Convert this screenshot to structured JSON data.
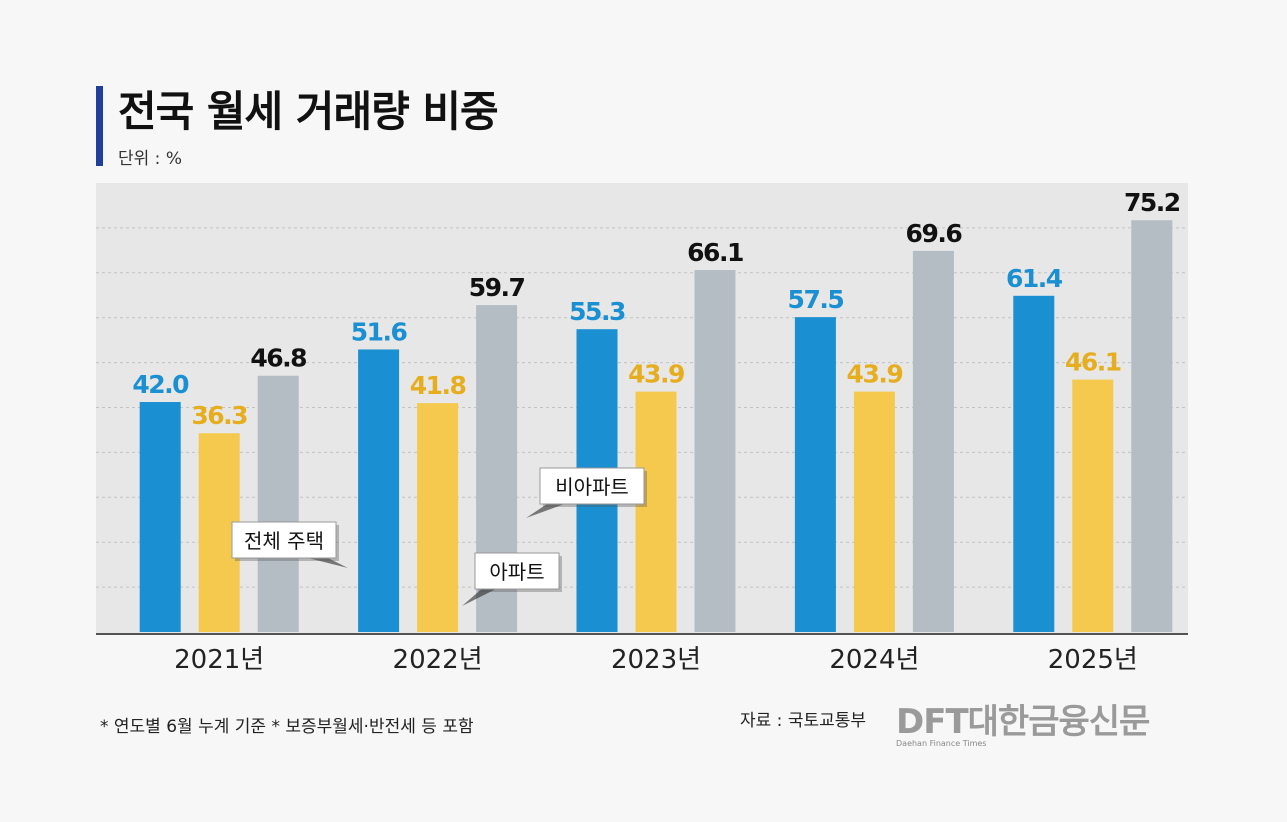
{
  "title": "전국 월세 거래량 비중",
  "unit_label": "단위 : %",
  "footnote": "* 연도별 6월 누계 기준   * 보증부월세·반전세 등 포함",
  "source": "자료 : 국토교통부",
  "logo": {
    "brand": "DFT대한금융신문",
    "subtitle": "Daehan Finance Times"
  },
  "chart_data": {
    "type": "bar",
    "categories": [
      "2021년",
      "2022년",
      "2023년",
      "2024년",
      "2025년"
    ],
    "series": [
      {
        "name": "전체 주택",
        "values": [
          42.0,
          51.6,
          55.3,
          57.5,
          61.4
        ],
        "color": "#1a8fd1",
        "label_color": "#1a8fd1"
      },
      {
        "name": "아파트",
        "values": [
          36.3,
          41.8,
          43.9,
          43.9,
          46.1
        ],
        "color": "#f5c94e",
        "label_color": "#e6ae1e"
      },
      {
        "name": "비아파트",
        "values": [
          46.8,
          59.7,
          66.1,
          69.6,
          75.2
        ],
        "color": "#b4bcc4",
        "label_color": "#111111"
      }
    ],
    "ylim": [
      0,
      82
    ],
    "grid": true,
    "value_labels": [
      "42.0",
      "51.6",
      "55.3",
      "57.5",
      "61.4",
      "36.3",
      "41.8",
      "43.9",
      "43.9",
      "46.1",
      "46.8",
      "59.7",
      "66.1",
      "69.6",
      "75.2"
    ]
  }
}
